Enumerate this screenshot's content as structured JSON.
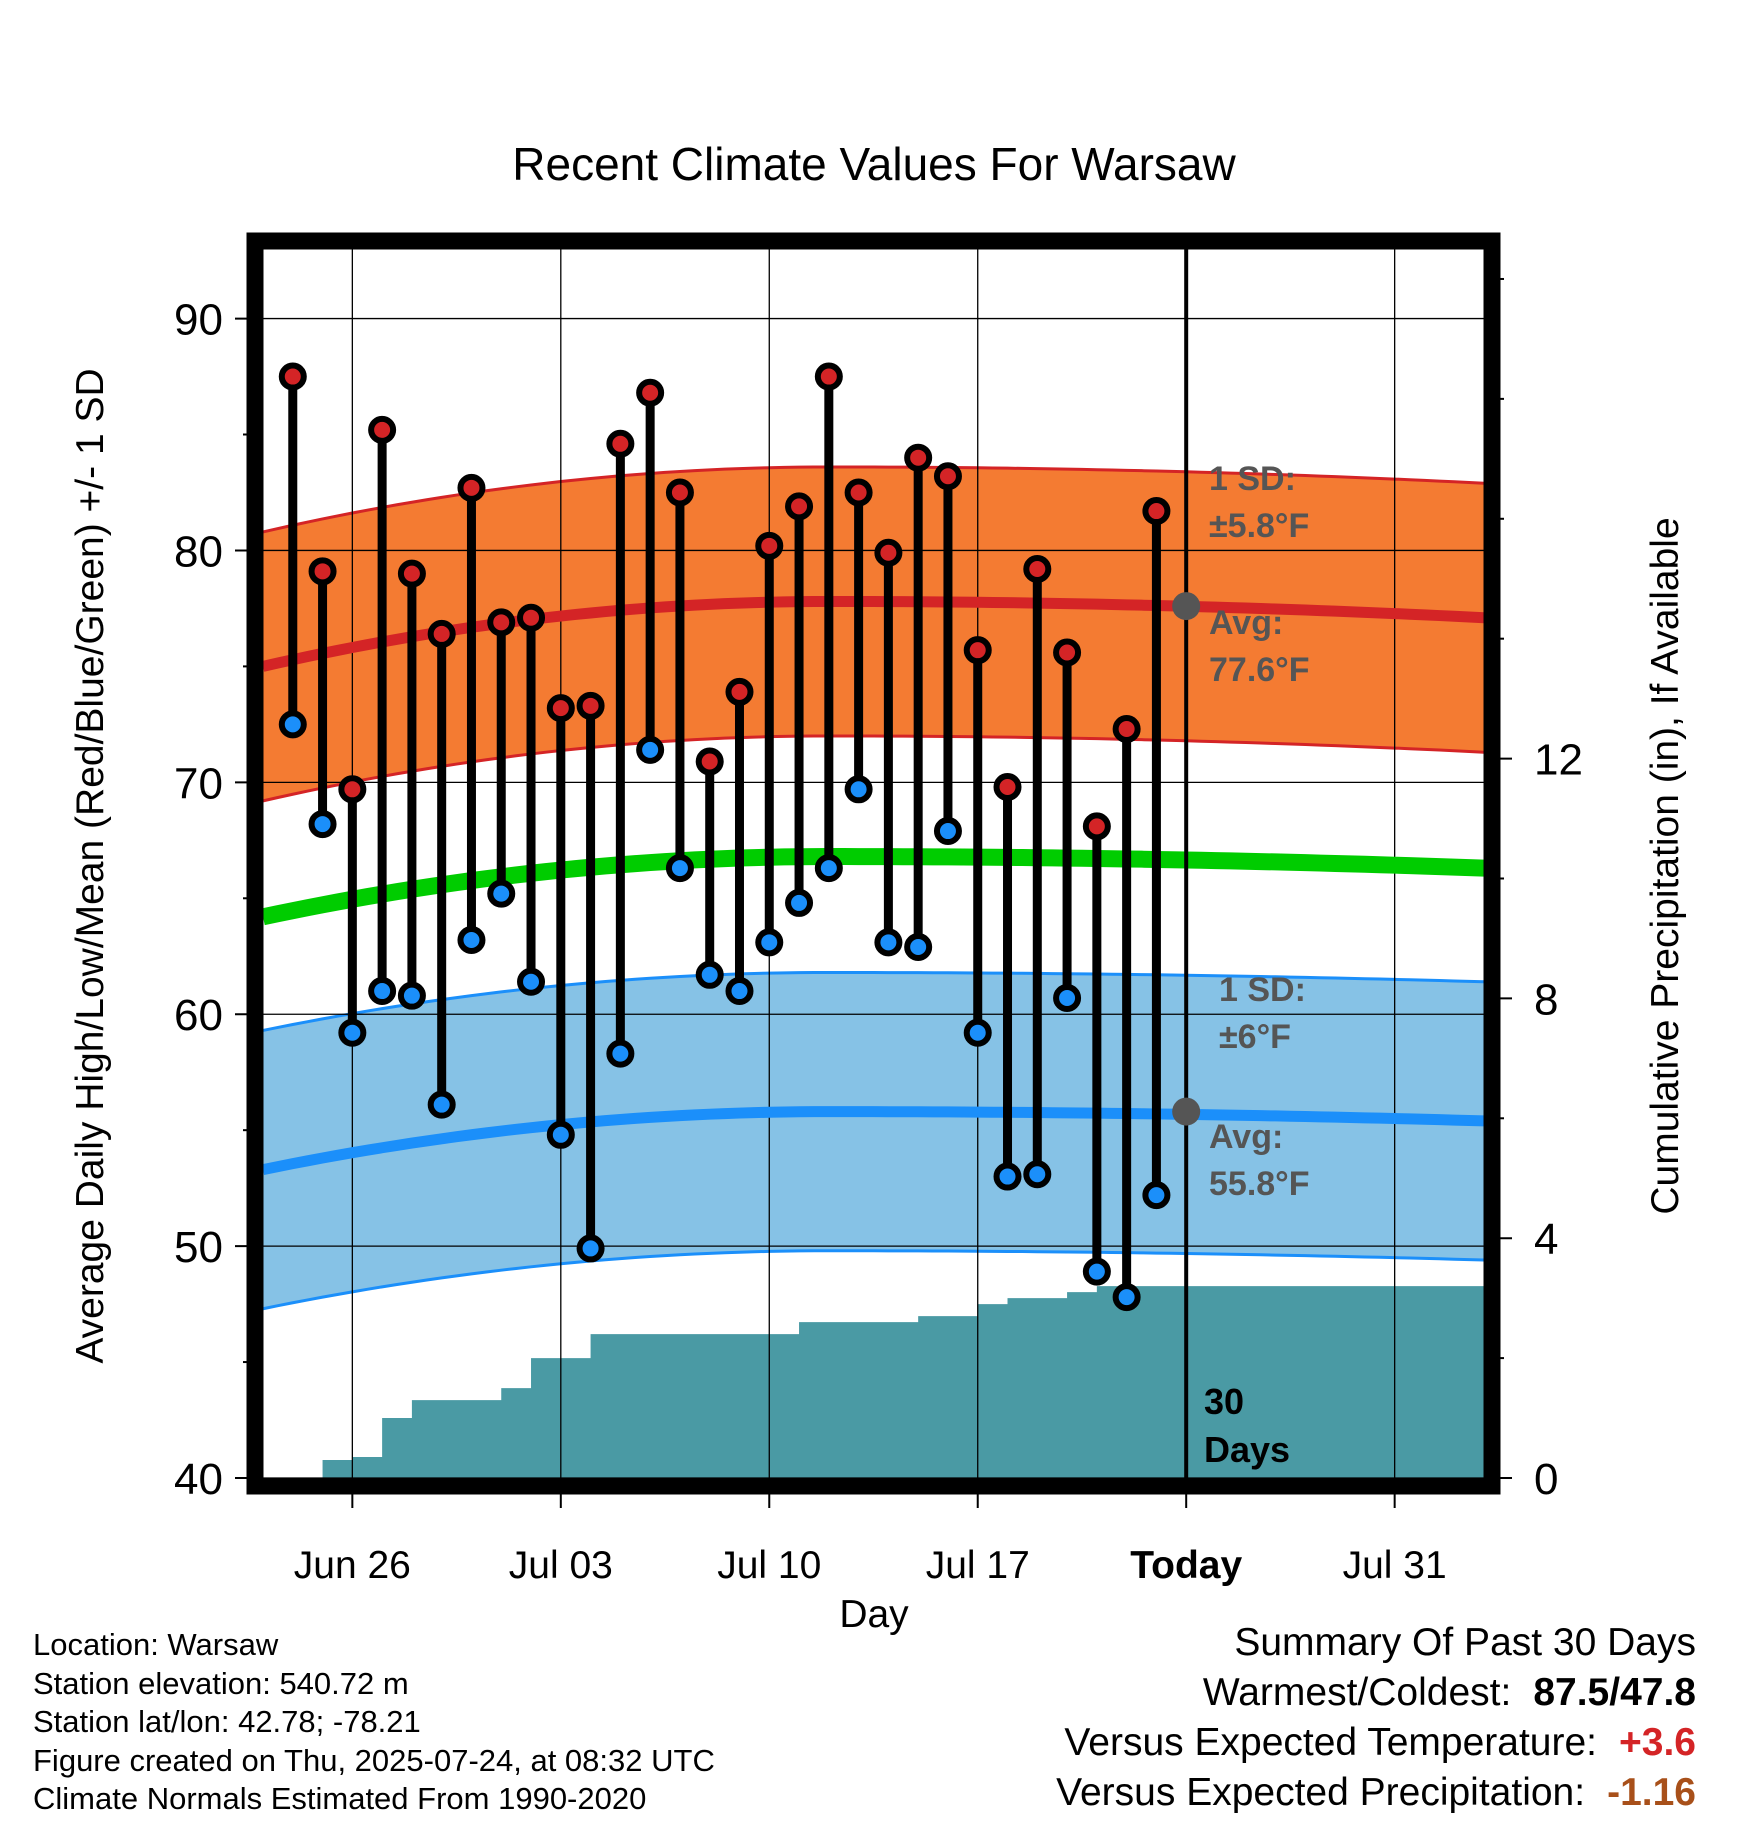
{
  "chart_data": {
    "type": "line",
    "title": "Recent Climate Values For Warsaw",
    "xlabel": "Day",
    "ylabel": "Average Daily High/Low/Mean (Red/Blue/Green) +/- 1 SD",
    "y2label": "Cumulative Precipitation (in), If Available",
    "ylim": [
      40,
      93
    ],
    "y2lim": [
      0,
      20.5
    ],
    "yticks": [
      "90",
      "80",
      "70",
      "60",
      "50",
      "40"
    ],
    "y2ticks": [
      "12",
      "8",
      "4",
      "0"
    ],
    "xticks": [
      "Jun 26",
      "Jul 03",
      "Jul 10",
      "Jul 17",
      "Today",
      "Jul 31"
    ],
    "xlim_days": [
      -31,
      10
    ],
    "grid": true,
    "days_before_today": [
      -30,
      -29,
      -28,
      -27,
      -26,
      -25,
      -24,
      -23,
      -22,
      -21,
      -20,
      -19,
      -18,
      -17,
      -16,
      -15,
      -14,
      -13,
      -12,
      -11,
      -10,
      -9,
      -8,
      -7,
      -6,
      -5,
      -4,
      -3,
      -2,
      -1
    ],
    "daily_high": [
      87.5,
      79.1,
      69.7,
      85.2,
      79.0,
      76.4,
      82.7,
      76.9,
      77.1,
      73.2,
      73.3,
      84.6,
      86.8,
      82.5,
      70.9,
      73.9,
      80.2,
      81.9,
      87.5,
      82.5,
      79.9,
      84.0,
      83.2,
      75.7,
      69.8,
      79.2,
      75.6,
      68.1,
      72.3,
      81.7
    ],
    "daily_low": [
      72.5,
      68.2,
      59.2,
      61.0,
      60.8,
      56.1,
      63.2,
      65.2,
      61.4,
      54.8,
      49.9,
      58.3,
      71.4,
      66.3,
      61.7,
      61.0,
      63.1,
      64.8,
      66.3,
      69.7,
      63.1,
      62.9,
      67.9,
      59.2,
      53.0,
      53.1,
      60.7,
      48.9,
      47.8,
      52.2
    ],
    "normal_high": {
      "name": "Avg:",
      "value_label": "77.6°F",
      "start": 75.0,
      "peak": 77.8,
      "end": 77.1,
      "color": "#d42426"
    },
    "normal_low": {
      "name": "Avg:",
      "value_label": "55.8°F",
      "start": 53.3,
      "peak": 55.8,
      "end": 55.4,
      "color": "#1b8ffa"
    },
    "normal_mean": {
      "start": 64.2,
      "peak": 66.8,
      "end": 66.3,
      "color": "#00cc00"
    },
    "high_sd": {
      "label": "1 SD:",
      "value_label": "±5.8°F",
      "value": 5.8,
      "fill": "#f47b32",
      "edge": "#d42426"
    },
    "low_sd": {
      "label": "1 SD:",
      "value_label": "±6°F",
      "value": 6.0,
      "fill": "#86c2e6",
      "edge": "#1b8ffa"
    },
    "precip": {
      "color": "#4a9aa4",
      "steps": [
        [
          -31,
          0
        ],
        [
          -29.7,
          0
        ],
        [
          -29,
          0.3
        ],
        [
          -28,
          0.35
        ],
        [
          -27,
          1.0
        ],
        [
          -26,
          1.3
        ],
        [
          -25,
          1.3
        ],
        [
          -24,
          1.3
        ],
        [
          -23,
          1.5
        ],
        [
          -22,
          2.0
        ],
        [
          -21,
          2.0
        ],
        [
          -20,
          2.4
        ],
        [
          -14,
          2.4
        ],
        [
          -13,
          2.6
        ],
        [
          -9,
          2.7
        ],
        [
          -8,
          2.7
        ],
        [
          -7,
          2.9
        ],
        [
          -6,
          3.0
        ],
        [
          -5,
          3.0
        ],
        [
          -4,
          3.1
        ],
        [
          -3,
          3.2
        ],
        [
          10,
          3.2
        ]
      ]
    },
    "today_label": "30\nDays",
    "today_label_lines": [
      "30",
      "Days"
    ]
  },
  "footer": {
    "location": "Location: Warsaw",
    "elevation": "Station elevation: 540.72 m",
    "latlon": "Station lat/lon: 42.78; -78.21",
    "created": "Figure created on Thu, 2025-07-24, at 08:32 UTC",
    "normals": "Climate Normals Estimated From 1990-2020"
  },
  "summary": {
    "heading": "Summary Of Past 30 Days",
    "warmest_label": "Warmest/Coldest:",
    "warmest_value": "87.5/47.8",
    "temp_label": "Versus Expected Temperature:",
    "temp_value": "+3.6",
    "temp_color": "#d42426",
    "precip_label": "Versus Expected Precipitation:",
    "precip_value": "-1.16",
    "precip_color": "#a8501a"
  }
}
